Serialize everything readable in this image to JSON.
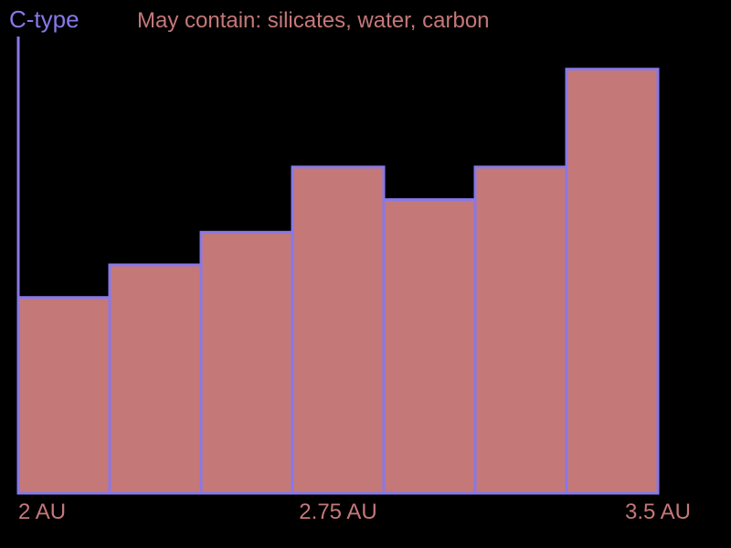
{
  "colors": {
    "background": "#000000",
    "accent": "#8878e8",
    "bar_fill": "#c47878",
    "text_secondary": "#c47878"
  },
  "chart_data": {
    "type": "bar",
    "title": "C-type",
    "subtitle": "May contain: silicates, water, carbon",
    "xlabel": "",
    "ylabel": "",
    "x_unit": "AU",
    "x_range": [
      2,
      3.5
    ],
    "bins": [
      {
        "x_start": 2.0,
        "x_end": 2.2,
        "value": 6
      },
      {
        "x_start": 2.2,
        "x_end": 2.4,
        "value": 7
      },
      {
        "x_start": 2.4,
        "x_end": 2.6,
        "value": 8
      },
      {
        "x_start": 2.6,
        "x_end": 2.8,
        "value": 10
      },
      {
        "x_start": 2.8,
        "x_end": 3.0,
        "value": 9
      },
      {
        "x_start": 3.0,
        "x_end": 3.2,
        "value": 10
      },
      {
        "x_start": 3.2,
        "x_end": 3.4,
        "value": 13
      }
    ],
    "ylim": [
      0,
      14
    ],
    "x_ticks": [
      {
        "value": 2.0,
        "label": "2 AU"
      },
      {
        "value": 2.75,
        "label": "2.75 AU"
      },
      {
        "value": 3.5,
        "label": "3.5 AU"
      }
    ],
    "grid": false,
    "legend": "none"
  }
}
